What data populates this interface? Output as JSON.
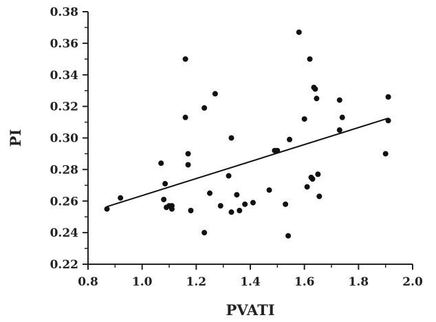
{
  "chart_data": {
    "type": "scatter",
    "xlabel": "PVATI",
    "ylabel": "PI",
    "xlim": [
      0.8,
      2.0
    ],
    "ylim": [
      0.22,
      0.38
    ],
    "xticks": [
      0.8,
      1.0,
      1.2,
      1.4,
      1.6,
      1.8,
      2.0
    ],
    "yticks": [
      0.22,
      0.24,
      0.26,
      0.28,
      0.3,
      0.32,
      0.34,
      0.36,
      0.38
    ],
    "xtick_labels": [
      "0.8",
      "1.0",
      "1.2",
      "1.4",
      "1.6",
      "1.8",
      "2.0"
    ],
    "ytick_labels": [
      "0.22",
      "0.24",
      "0.26",
      "0.28",
      "0.30",
      "0.32",
      "0.34",
      "0.36",
      "0.38"
    ],
    "grid": false,
    "series": [
      {
        "points": [
          [
            0.87,
            0.255
          ],
          [
            0.92,
            0.262
          ],
          [
            1.07,
            0.284
          ],
          [
            1.08,
            0.261
          ],
          [
            1.085,
            0.271
          ],
          [
            1.09,
            0.256
          ],
          [
            1.1,
            0.257
          ],
          [
            1.11,
            0.255
          ],
          [
            1.11,
            0.257
          ],
          [
            1.16,
            0.35
          ],
          [
            1.16,
            0.313
          ],
          [
            1.17,
            0.29
          ],
          [
            1.17,
            0.283
          ],
          [
            1.18,
            0.254
          ],
          [
            1.23,
            0.319
          ],
          [
            1.23,
            0.24
          ],
          [
            1.25,
            0.265
          ],
          [
            1.27,
            0.328
          ],
          [
            1.29,
            0.257
          ],
          [
            1.32,
            0.276
          ],
          [
            1.33,
            0.3
          ],
          [
            1.33,
            0.253
          ],
          [
            1.35,
            0.264
          ],
          [
            1.36,
            0.254
          ],
          [
            1.38,
            0.258
          ],
          [
            1.41,
            0.259
          ],
          [
            1.47,
            0.267
          ],
          [
            1.49,
            0.292
          ],
          [
            1.5,
            0.292
          ],
          [
            1.53,
            0.258
          ],
          [
            1.54,
            0.238
          ],
          [
            1.545,
            0.299
          ],
          [
            1.58,
            0.367
          ],
          [
            1.6,
            0.312
          ],
          [
            1.61,
            0.269
          ],
          [
            1.62,
            0.35
          ],
          [
            1.625,
            0.275
          ],
          [
            1.63,
            0.274
          ],
          [
            1.635,
            0.332
          ],
          [
            1.64,
            0.331
          ],
          [
            1.645,
            0.325
          ],
          [
            1.65,
            0.277
          ],
          [
            1.655,
            0.263
          ],
          [
            1.73,
            0.324
          ],
          [
            1.73,
            0.305
          ],
          [
            1.74,
            0.313
          ],
          [
            1.9,
            0.29
          ],
          [
            1.91,
            0.326
          ],
          [
            1.91,
            0.311
          ]
        ]
      }
    ],
    "fit_line": {
      "x": [
        0.87,
        1.91
      ],
      "y": [
        0.2565,
        0.3125
      ]
    }
  }
}
